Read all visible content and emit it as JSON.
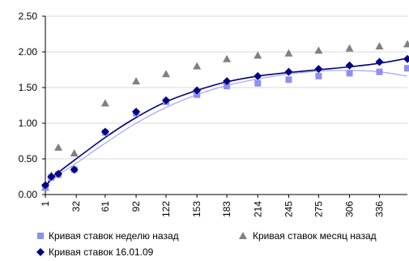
{
  "chart_data": {
    "type": "scatter",
    "title": "",
    "xlabel": "",
    "ylabel": "",
    "xlim": [
      1,
      364
    ],
    "ylim": [
      0,
      2.5
    ],
    "y_ticks": [
      "0.00",
      "0.50",
      "1.00",
      "1.50",
      "2.00",
      "2.50"
    ],
    "x_ticks": [
      "1",
      "32",
      "61",
      "92",
      "122",
      "153",
      "183",
      "214",
      "245",
      "275",
      "306",
      "336"
    ],
    "grid": "horizontal",
    "legend_position": "bottom",
    "series": [
      {
        "name": "Кривая ставок неделю назад",
        "marker": "square",
        "color": "#8f8fef",
        "line_color": "#a3a3f5",
        "x": [
          1,
          7,
          14,
          30,
          61,
          92,
          122,
          153,
          183,
          214,
          245,
          275,
          306,
          336,
          364
        ],
        "y": [
          0.1,
          0.24,
          0.28,
          0.35,
          0.87,
          1.14,
          1.3,
          1.4,
          1.52,
          1.56,
          1.61,
          1.66,
          1.7,
          1.72,
          1.77
        ],
        "trend_y": [
          0.08,
          0.2,
          0.28,
          0.42,
          0.72,
          1.0,
          1.22,
          1.4,
          1.53,
          1.62,
          1.69,
          1.73,
          1.74,
          1.72,
          1.66
        ]
      },
      {
        "name": "Кривая ставок месяц назад",
        "marker": "triangle",
        "color": "#808080",
        "x": [
          1,
          7,
          14,
          30,
          61,
          92,
          122,
          153,
          183,
          214,
          245,
          275,
          306,
          336,
          364
        ],
        "y": [
          0.1,
          0.27,
          0.66,
          0.58,
          1.28,
          1.59,
          1.69,
          1.8,
          1.9,
          1.95,
          1.98,
          2.02,
          2.05,
          2.08,
          2.11
        ]
      },
      {
        "name": "Кривая ставок 16.01.09",
        "marker": "diamond",
        "color": "#000080",
        "line_color": "#000080",
        "x": [
          1,
          7,
          14,
          30,
          61,
          92,
          122,
          153,
          183,
          214,
          245,
          275,
          306,
          336,
          364
        ],
        "y": [
          0.13,
          0.25,
          0.29,
          0.35,
          0.88,
          1.16,
          1.32,
          1.46,
          1.59,
          1.66,
          1.72,
          1.76,
          1.81,
          1.86,
          1.9
        ],
        "trend_y": [
          0.1,
          0.23,
          0.31,
          0.48,
          0.8,
          1.08,
          1.3,
          1.46,
          1.58,
          1.66,
          1.71,
          1.75,
          1.79,
          1.84,
          1.91
        ]
      }
    ]
  }
}
